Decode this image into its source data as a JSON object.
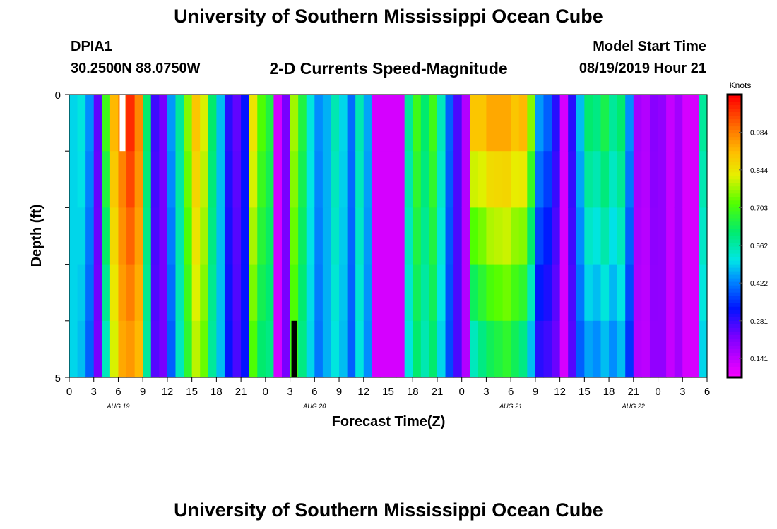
{
  "header": {
    "title": "University of Southern Mississippi Ocean Cube",
    "station_id": "DPIA1",
    "coords": "30.2500N 88.0750W",
    "subtitle": "2-D Currents Speed-Magnitude",
    "model_start_label": "Model Start Time",
    "model_start_value": "08/19/2019 Hour 21"
  },
  "footer": {
    "title": "University of Southern Mississippi Ocean Cube"
  },
  "chart_data": {
    "type": "heatmap",
    "xlabel": "Forecast Time(Z)",
    "ylabel": "Depth (ft)",
    "colorbar_label": "Knots",
    "colorbar_ticks": [
      "0.984",
      "0.844",
      "0.703",
      "0.562",
      "0.422",
      "0.281",
      "0.141"
    ],
    "colorbar_values": [
      0.984,
      0.844,
      0.703,
      0.562,
      0.422,
      0.281,
      0.141
    ],
    "vmin": 0.07,
    "vmax": 1.125,
    "y_tick_labels": [
      "0",
      "5"
    ],
    "ylim": [
      0,
      5
    ],
    "x_tick_labels": [
      "0",
      "3",
      "6",
      "9",
      "12",
      "15",
      "18",
      "21",
      "0",
      "3",
      "6",
      "9",
      "12",
      "15",
      "18",
      "21",
      "0",
      "3",
      "6",
      "9",
      "12",
      "15",
      "18",
      "21",
      "0",
      "3",
      "6"
    ],
    "date_labels": [
      {
        "label": "AUG 19",
        "hour": 6
      },
      {
        "label": "AUG 20",
        "hour": 30
      },
      {
        "label": "AUG 21",
        "hour": 54
      },
      {
        "label": "AUG 22",
        "hour": 69
      }
    ],
    "hours_start": 0,
    "hours_end": 78,
    "depth_rows": 5,
    "surface": [
      0.5,
      0.52,
      0.44,
      0.25,
      0.7,
      0.92,
      1.0,
      1.08,
      0.98,
      0.62,
      0.28,
      0.23,
      0.45,
      0.58,
      0.76,
      0.9,
      0.82,
      0.62,
      0.48,
      0.3,
      0.25,
      0.33,
      0.85,
      0.72,
      0.66,
      0.12,
      0.23,
      0.78,
      0.66,
      0.52,
      0.44,
      0.47,
      0.56,
      0.5,
      0.41,
      0.56,
      0.46,
      0.12,
      0.12,
      0.12,
      0.12,
      0.58,
      0.7,
      0.62,
      0.7,
      0.55,
      0.4,
      0.27,
      0.16,
      0.9,
      0.9,
      0.94,
      0.94,
      0.94,
      0.9,
      0.92,
      0.76,
      0.45,
      0.4,
      0.3,
      0.12,
      0.3,
      0.48,
      0.62,
      0.6,
      0.65,
      0.58,
      0.62,
      0.44,
      0.18,
      0.16,
      0.21,
      0.2,
      0.14,
      0.18,
      0.12,
      0.12,
      0.58
    ],
    "bottom": [
      0.5,
      0.48,
      0.4,
      0.23,
      0.55,
      0.82,
      0.94,
      0.96,
      0.92,
      0.58,
      0.26,
      0.23,
      0.4,
      0.55,
      0.68,
      0.8,
      0.74,
      0.58,
      0.48,
      0.33,
      0.27,
      0.33,
      0.72,
      0.62,
      0.6,
      0.12,
      0.23,
      0.7,
      0.6,
      0.5,
      0.42,
      0.47,
      0.52,
      0.48,
      0.4,
      0.52,
      0.44,
      0.12,
      0.12,
      0.12,
      0.12,
      0.52,
      0.62,
      0.56,
      0.62,
      0.5,
      0.38,
      0.27,
      0.16,
      0.55,
      0.6,
      0.64,
      0.66,
      0.68,
      0.64,
      0.6,
      0.48,
      0.3,
      0.28,
      0.24,
      0.12,
      0.26,
      0.4,
      0.46,
      0.44,
      0.48,
      0.44,
      0.48,
      0.36,
      0.16,
      0.15,
      0.2,
      0.2,
      0.14,
      0.18,
      0.12,
      0.12,
      0.5
    ],
    "missing": [
      {
        "color": "#ffffff",
        "hour": 6,
        "depth_row": 0
      },
      {
        "color": "#000000",
        "hour": 27,
        "depth_row": 4
      }
    ]
  }
}
